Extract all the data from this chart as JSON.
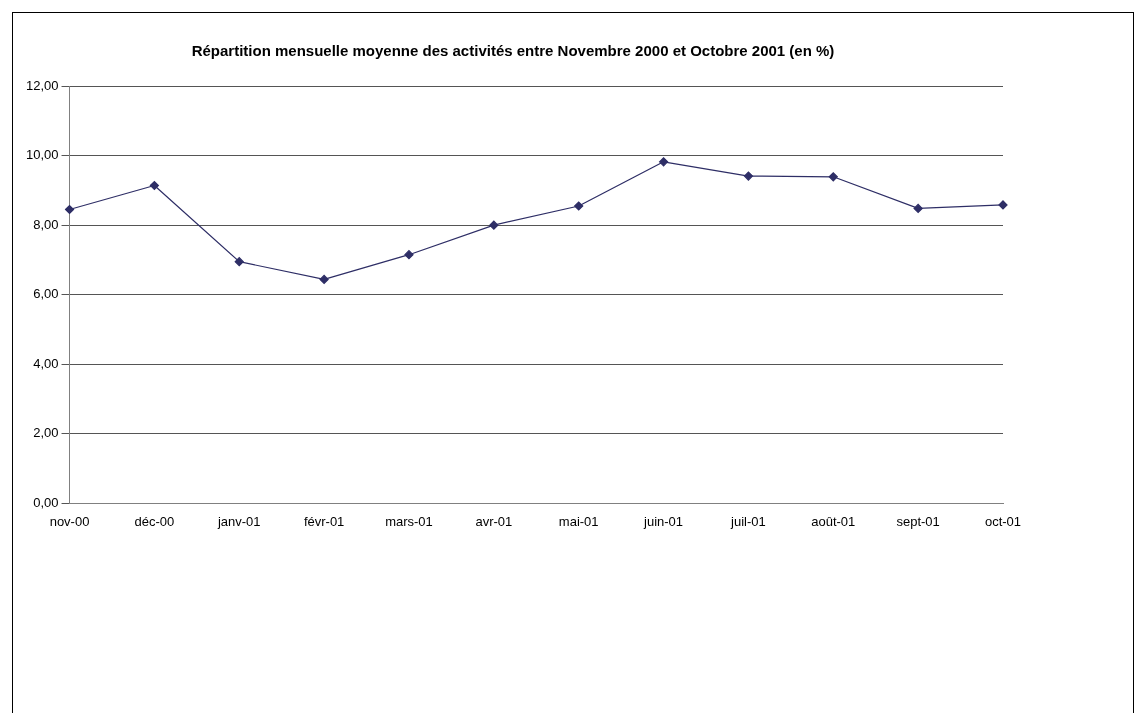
{
  "chart_data": {
    "type": "line",
    "title": "Répartition mensuelle moyenne des activités entre Novembre 2000 et Octobre 2001 (en %)",
    "categories": [
      "nov-00",
      "déc-00",
      "janv-01",
      "févr-01",
      "mars-01",
      "avr-01",
      "mai-01",
      "juin-01",
      "juil-01",
      "août-01",
      "sept-01",
      "oct-01"
    ],
    "series": [
      {
        "color": "#2e2e66",
        "values": [
          8.45,
          9.14,
          6.95,
          6.44,
          7.15,
          8.0,
          8.55,
          9.82,
          9.41,
          9.39,
          8.48,
          8.58
        ]
      }
    ],
    "ylim": [
      0,
      12
    ],
    "yticks": [
      {
        "value": 0,
        "label": "0,00"
      },
      {
        "value": 2,
        "label": "2,00"
      },
      {
        "value": 4,
        "label": "4,00"
      },
      {
        "value": 6,
        "label": "6,00"
      },
      {
        "value": 8,
        "label": "8,00"
      },
      {
        "value": 10,
        "label": "10,00"
      },
      {
        "value": 12,
        "label": "12,00"
      }
    ],
    "grid": "y",
    "legend": false,
    "marker": "diamond",
    "line_style": "solid"
  }
}
